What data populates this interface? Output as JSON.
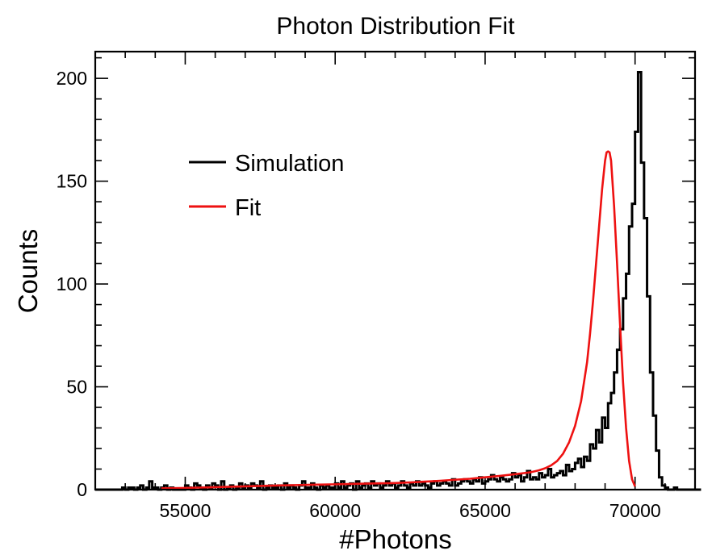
{
  "chart_data": {
    "type": "histogram",
    "title": "Photon Distribution Fit",
    "xlabel": "#Photons",
    "ylabel": "Counts",
    "xlim": [
      52000,
      72000
    ],
    "ylim": [
      0,
      213
    ],
    "xticks": [
      {
        "value": 55000,
        "label": "55000"
      },
      {
        "value": 60000,
        "label": "60000"
      },
      {
        "value": 65000,
        "label": "65000"
      },
      {
        "value": 70000,
        "label": "70000"
      }
    ],
    "yticks": [
      {
        "value": 0,
        "label": "0"
      },
      {
        "value": 50,
        "label": "50"
      },
      {
        "value": 100,
        "label": "100"
      },
      {
        "value": 150,
        "label": "150"
      },
      {
        "value": 200,
        "label": "200"
      }
    ],
    "x_minor_step": 1000,
    "y_minor_step": 10,
    "legend_position": "upper-left",
    "bin_start": 52000,
    "bin_width": 100,
    "series": [
      {
        "name": "Simulation",
        "color": "#000000",
        "style": "step",
        "values": [
          0,
          0,
          0,
          0,
          0,
          0,
          0,
          0,
          0,
          1,
          0,
          1,
          1,
          0,
          1,
          2,
          0,
          1,
          4,
          1,
          1,
          0,
          1,
          2,
          0,
          1,
          0,
          0,
          0,
          0,
          2,
          1,
          0,
          3,
          2,
          1,
          0,
          2,
          1,
          3,
          2,
          0,
          4,
          0,
          1,
          2,
          0,
          1,
          3,
          1,
          2,
          1,
          3,
          2,
          1,
          4,
          0,
          1,
          2,
          1,
          1,
          2,
          0,
          3,
          1,
          2,
          1,
          0,
          2,
          4,
          1,
          1,
          3,
          1,
          0,
          2,
          1,
          2,
          1,
          1,
          3,
          1,
          4,
          1,
          2,
          3,
          0,
          4,
          1,
          2,
          3,
          1,
          4,
          2,
          3,
          1,
          2,
          4,
          2,
          3,
          1,
          2,
          4,
          2,
          1,
          3,
          2,
          4,
          2,
          3,
          2,
          1,
          3,
          4,
          2,
          3,
          4,
          3,
          2,
          5,
          2,
          3,
          4,
          5,
          4,
          3,
          5,
          4,
          6,
          3,
          4,
          5,
          7,
          5,
          4,
          6,
          5,
          4,
          5,
          8,
          6,
          7,
          4,
          6,
          9,
          5,
          6,
          5,
          8,
          6,
          7,
          10,
          6,
          7,
          8,
          9,
          7,
          12,
          9,
          10,
          13,
          15,
          11,
          16,
          14,
          22,
          20,
          29,
          23,
          35,
          30,
          42,
          47,
          57,
          68,
          78,
          93,
          105,
          128,
          139,
          174,
          203,
          159,
          132,
          94,
          57,
          36,
          19,
          6,
          2,
          1,
          0,
          0,
          1,
          0,
          0,
          0,
          0,
          0,
          0,
          0,
          0
        ]
      },
      {
        "name": "Fit",
        "color": "#ee1111",
        "style": "line",
        "x": [
          54200,
          55000,
          56000,
          57000,
          58000,
          59000,
          60000,
          61000,
          62000,
          62500,
          63000,
          63500,
          64000,
          64500,
          65000,
          65500,
          66000,
          66500,
          66800,
          67000,
          67200,
          67400,
          67600,
          67800,
          68000,
          68200,
          68400,
          68500,
          68600,
          68700,
          68800,
          68900,
          69000,
          69050,
          69100,
          69150,
          69200,
          69300,
          69400,
          69500,
          69600,
          69700,
          69800,
          69900,
          70000
        ],
        "y": [
          0.6,
          0.8,
          1.2,
          1.6,
          2.0,
          2.3,
          2.6,
          2.9,
          3.2,
          3.5,
          3.9,
          4.3,
          4.8,
          5.3,
          6.0,
          6.7,
          7.5,
          8.4,
          9.4,
          10.4,
          11.8,
          13.9,
          17.5,
          23.0,
          31.0,
          43.0,
          62.0,
          76.0,
          92.0,
          110.0,
          128.0,
          146.0,
          160.0,
          164.0,
          164.5,
          164.0,
          160.0,
          138.0,
          110.0,
          80.0,
          52.0,
          30.0,
          14.0,
          5.0,
          1.5
        ]
      }
    ]
  }
}
